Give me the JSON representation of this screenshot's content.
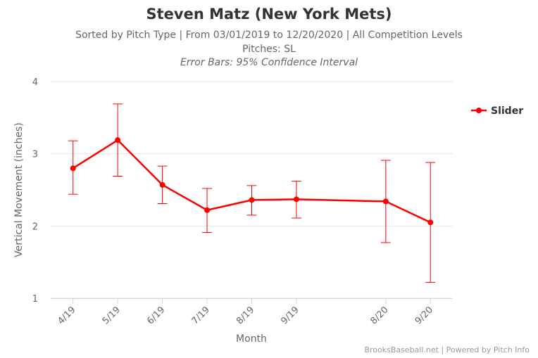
{
  "chart_data": {
    "type": "line",
    "title": "Steven Matz (New York Mets)",
    "subtitle": "Sorted by Pitch Type | From 03/01/2019 to 12/20/2020 | All Competition Levels",
    "subtitle2": "Pitches: SL",
    "subtitle3": "Error Bars: 95% Confidence Interval",
    "xlabel": "Month",
    "ylabel": "Vertical Movement (inches)",
    "ylim": [
      1,
      4
    ],
    "yticks": [
      "1",
      "2",
      "3",
      "4"
    ],
    "categories": [
      "4/19",
      "5/19",
      "6/19",
      "7/19",
      "8/19",
      "9/19",
      "8/20",
      "9/20"
    ],
    "category_slots": [
      0,
      1,
      2,
      3,
      4,
      5,
      7,
      8
    ],
    "series": [
      {
        "name": "Slider",
        "color": "#ff0000",
        "values": [
          2.8,
          3.19,
          2.57,
          2.22,
          2.36,
          2.37,
          2.34,
          2.05
        ],
        "error_low": [
          2.44,
          2.69,
          2.31,
          1.91,
          2.15,
          2.11,
          1.77,
          1.22
        ],
        "error_high": [
          3.18,
          3.69,
          2.83,
          2.52,
          2.56,
          2.62,
          2.91,
          2.88
        ]
      }
    ],
    "legend_position": "right",
    "credits": "BrooksBaseball.net | Powered by Pitch Info"
  }
}
